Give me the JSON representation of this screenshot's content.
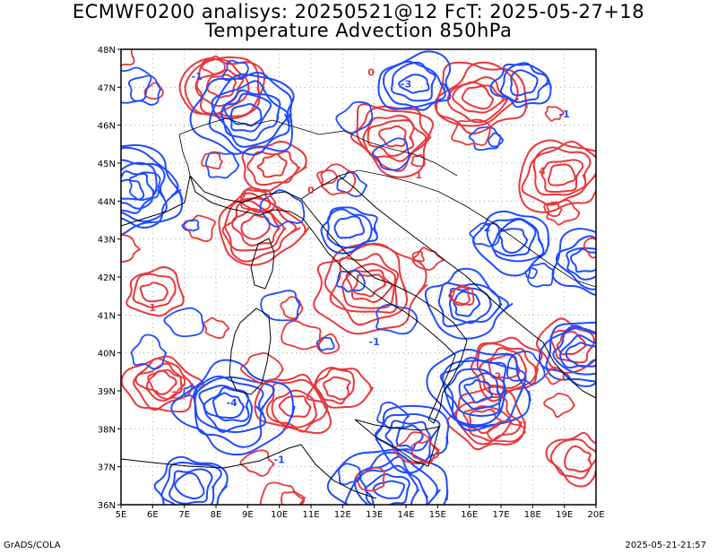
{
  "title_line1": "ECMWF0200 analisys: 20250521@12 FcT: 2025-05-27+18",
  "title_line2": "Temperature Advection 850hPa",
  "credit": "GrADS/COLA",
  "timestamp": "2025-05-21-21:57",
  "map": {
    "region": "Italy and central Mediterranean",
    "lon_range": [
      5,
      20
    ],
    "lat_range": [
      36,
      48
    ],
    "lon_labels": [
      "5E",
      "6E",
      "7E",
      "8E",
      "9E",
      "10E",
      "11E",
      "12E",
      "13E",
      "14E",
      "15E",
      "16E",
      "17E",
      "18E",
      "19E",
      "20E"
    ],
    "lat_labels": [
      "36N",
      "37N",
      "38N",
      "39N",
      "40N",
      "41N",
      "42N",
      "43N",
      "44N",
      "45N",
      "46N",
      "47N",
      "48N"
    ],
    "grid": "dotted",
    "contour_colors": {
      "positive": "#e8383c",
      "negative": "#1f4bff"
    },
    "contour_labels": [
      {
        "text": "1",
        "lon": 6.0,
        "lat": 41.1,
        "sign": "positive"
      },
      {
        "text": "2",
        "lon": 6.7,
        "lat": 38.8,
        "sign": "positive"
      },
      {
        "text": "0",
        "lon": 12.9,
        "lat": 47.3,
        "sign": "positive"
      },
      {
        "text": "0",
        "lon": 11.0,
        "lat": 44.2,
        "sign": "positive"
      },
      {
        "text": "1",
        "lon": 14.4,
        "lat": 44.6,
        "sign": "positive"
      },
      {
        "text": "4",
        "lon": 18.3,
        "lat": 44.7,
        "sign": "positive"
      },
      {
        "text": "3",
        "lon": 10.2,
        "lat": 38.0,
        "sign": "positive"
      },
      {
        "text": "2",
        "lon": 16.9,
        "lat": 39.3,
        "sign": "positive"
      },
      {
        "text": "-1",
        "lon": 7.4,
        "lat": 47.2,
        "sign": "negative"
      },
      {
        "text": "-3",
        "lon": 14.0,
        "lat": 47.0,
        "sign": "negative"
      },
      {
        "text": "-1",
        "lon": 10.0,
        "lat": 37.1,
        "sign": "negative"
      },
      {
        "text": "-1",
        "lon": 13.0,
        "lat": 40.2,
        "sign": "negative"
      },
      {
        "text": "-2",
        "lon": 16.5,
        "lat": 43.2,
        "sign": "negative"
      },
      {
        "text": "-4",
        "lon": 8.5,
        "lat": 38.6,
        "sign": "negative"
      },
      {
        "text": "-1",
        "lon": 19.0,
        "lat": 46.2,
        "sign": "negative"
      }
    ]
  }
}
